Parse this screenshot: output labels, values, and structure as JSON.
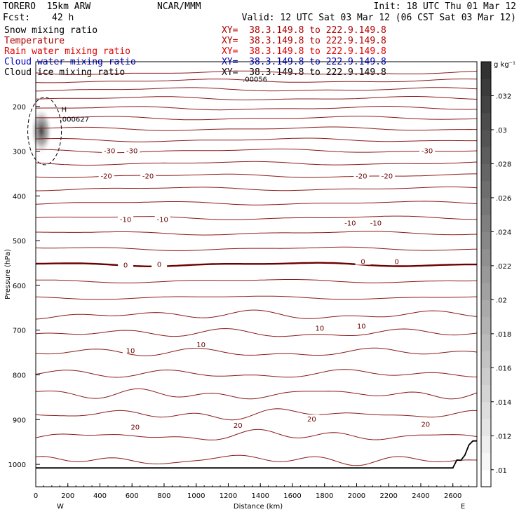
{
  "header": {
    "title": "TORERO  15km ARW",
    "org": "NCAR/MMM",
    "init": "Init: 18 UTC Thu 01 Mar 12",
    "fcst_label": "Fcst:",
    "fcst_value": "42 h",
    "valid": "Valid: 12 UTC Sat 03 Mar 12 (06 CST Sat 03 Mar 12)"
  },
  "fields": [
    {
      "label": "Snow mixing ratio",
      "xy": "XY=  38.3.149.8 to 222.9.149.8",
      "color": "#000000"
    },
    {
      "label": "Temperature",
      "xy": "XY=  38.3.149.8 to 222.9.149.8",
      "color": "#b00000"
    },
    {
      "label": "Rain water mixing ratio",
      "xy": "XY=  38.3.149.8 to 222.9.149.8",
      "color": "#e00000"
    },
    {
      "label": "Cloud water mixing ratio",
      "xy": "XY=  38.3.149.8 to 222.9.149.8",
      "color": "#0000c0"
    },
    {
      "label": "Cloud ice mixing ratio",
      "xy": "XY=  38.3.149.8 to 222.9.149.8",
      "color": "#000000"
    }
  ],
  "chart_data": {
    "type": "contour-cross-section",
    "xlabel": "Distance (km)",
    "ylabel": "Pressure (hPa)",
    "xlim": [
      0,
      2750
    ],
    "ylim": [
      1050,
      100
    ],
    "x_ticks": [
      0,
      200,
      400,
      600,
      800,
      1000,
      1200,
      1400,
      1600,
      1800,
      2000,
      2200,
      2400,
      2600
    ],
    "y_ticks": [
      200,
      300,
      400,
      500,
      600,
      700,
      800,
      900,
      1000
    ],
    "x_end_labels": {
      "left": "W",
      "right": "E"
    },
    "colorbar": {
      "unit": "g kg⁻¹",
      "ticks": [
        ".01",
        ".012",
        ".014",
        ".016",
        ".018",
        ".02",
        ".022",
        ".024",
        ".026",
        ".028",
        ".03",
        ".032"
      ],
      "min": 0.009,
      "max": 0.034
    },
    "temperature_labels": [
      {
        "x": 460,
        "p": 298,
        "text": "-30"
      },
      {
        "x": 600,
        "p": 298,
        "text": "-30"
      },
      {
        "x": 2440,
        "p": 298,
        "text": "-30"
      },
      {
        "x": 440,
        "p": 355,
        "text": "-20"
      },
      {
        "x": 700,
        "p": 355,
        "text": "-20"
      },
      {
        "x": 2030,
        "p": 355,
        "text": "-20"
      },
      {
        "x": 2190,
        "p": 355,
        "text": "-20"
      },
      {
        "x": 560,
        "p": 452,
        "text": "-10"
      },
      {
        "x": 790,
        "p": 452,
        "text": "-10"
      },
      {
        "x": 1960,
        "p": 460,
        "text": "-10"
      },
      {
        "x": 2120,
        "p": 460,
        "text": "-10"
      },
      {
        "x": 560,
        "p": 554,
        "text": "0"
      },
      {
        "x": 770,
        "p": 552,
        "text": "0"
      },
      {
        "x": 2040,
        "p": 546,
        "text": "0"
      },
      {
        "x": 2250,
        "p": 546,
        "text": "0"
      },
      {
        "x": 590,
        "p": 745,
        "text": "10"
      },
      {
        "x": 1030,
        "p": 732,
        "text": "10"
      },
      {
        "x": 1770,
        "p": 695,
        "text": "10"
      },
      {
        "x": 2030,
        "p": 690,
        "text": "10"
      },
      {
        "x": 620,
        "p": 916,
        "text": "20"
      },
      {
        "x": 1260,
        "p": 912,
        "text": "20"
      },
      {
        "x": 1720,
        "p": 898,
        "text": "20"
      },
      {
        "x": 2430,
        "p": 910,
        "text": "20"
      }
    ],
    "snow_max": {
      "x": 160,
      "p": 217,
      "symbol": "H",
      "value": ".000627"
    },
    "cloud_ice_label": {
      "x": 1290,
      "p": 145,
      "text": ".00056"
    }
  }
}
